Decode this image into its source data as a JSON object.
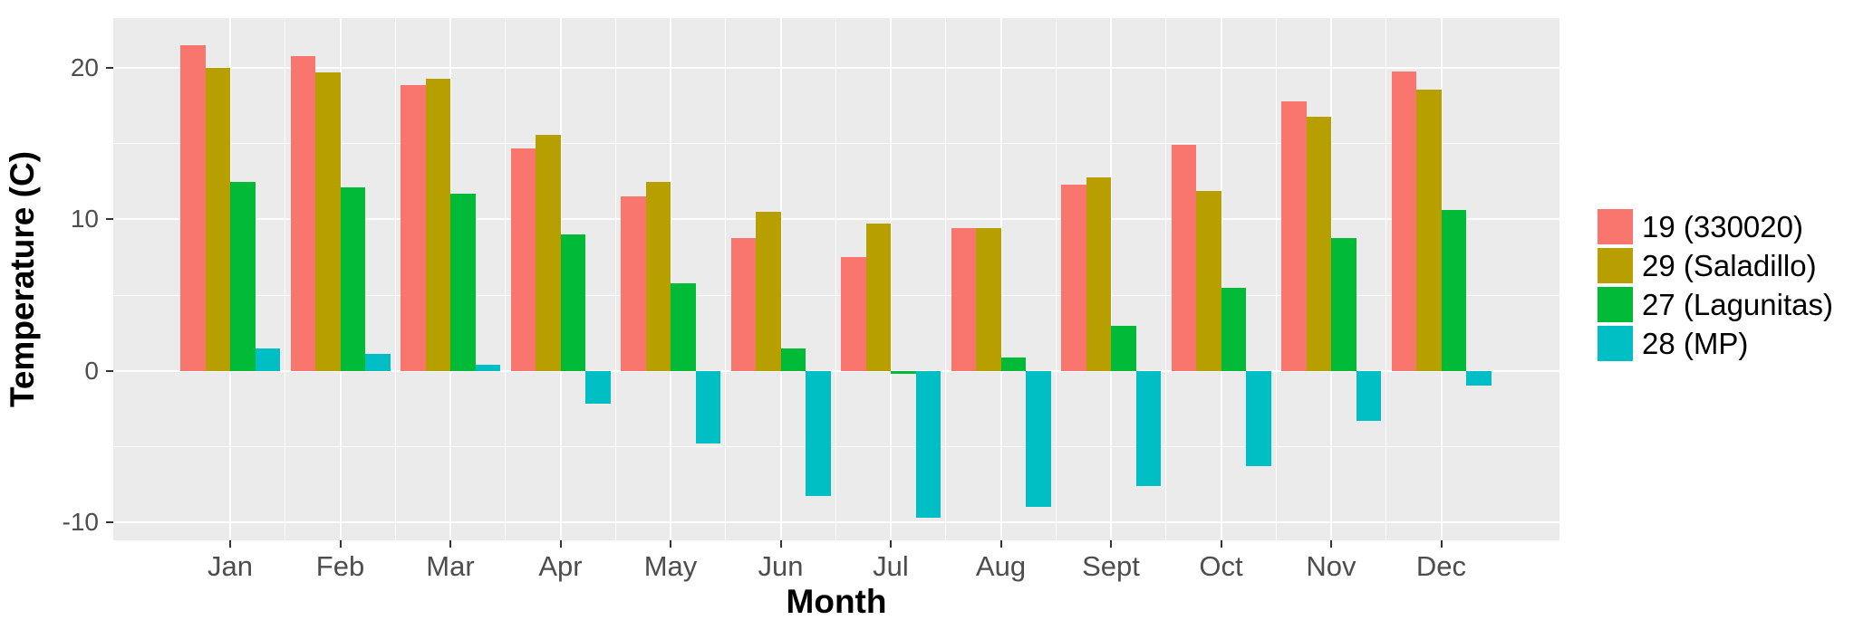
{
  "chart_data": {
    "type": "bar",
    "title": "",
    "xlabel": "Month",
    "ylabel": "Temperature (C)",
    "categories": [
      "Jan",
      "Feb",
      "Mar",
      "Apr",
      "May",
      "Jun",
      "Jul",
      "Aug",
      "Sept",
      "Oct",
      "Nov",
      "Dec"
    ],
    "series": [
      {
        "name": "19 (330020)",
        "color": "#F8766D",
        "values": [
          21.5,
          20.8,
          18.9,
          14.7,
          11.5,
          8.8,
          7.5,
          9.4,
          12.3,
          14.9,
          17.8,
          19.8
        ]
      },
      {
        "name": "29 (Saladillo)",
        "color": "#B79F00",
        "values": [
          20.0,
          19.7,
          19.3,
          15.6,
          12.5,
          10.5,
          9.7,
          9.4,
          12.8,
          11.9,
          16.8,
          18.6
        ]
      },
      {
        "name": "27 (Lagunitas)",
        "color": "#00BA38",
        "values": [
          12.5,
          12.1,
          11.7,
          9.0,
          5.8,
          1.5,
          -0.2,
          0.9,
          3.0,
          5.5,
          8.8,
          10.6
        ]
      },
      {
        "name": "28 (MP)",
        "color": "#00BFC4",
        "values": [
          1.5,
          1.1,
          0.4,
          -2.2,
          -4.8,
          -8.3,
          -9.7,
          -9.0,
          -7.6,
          -6.3,
          -3.3,
          -1.0
        ]
      }
    ],
    "ylim": [
      -11.2,
      23.3
    ],
    "yticks_major": [
      -10,
      0,
      10,
      20
    ],
    "yticks_minor": [
      -5,
      5,
      15
    ],
    "ytick_labels": [
      "-10",
      "0",
      "10",
      "20"
    ],
    "grid": "on",
    "legend_position": "right",
    "panel_background": "#EBEBEB",
    "grid_color": "#FFFFFF",
    "tick_mark_color": "#333333",
    "tick_label_color": "#4D4D4D",
    "axis_title_color": "#000000"
  }
}
